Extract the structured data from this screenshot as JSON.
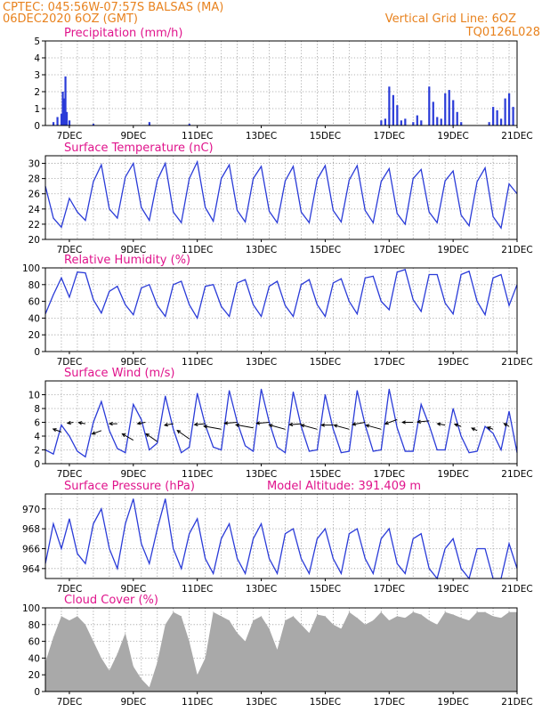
{
  "header": {
    "line1": "CPTEC:   045:56W-07:57S   BALSAS (MA)",
    "line2": "06DEC2020 6OZ (GMT)",
    "grid_note": "Vertical Grid Line: 6OZ",
    "code": "TQ0126L028"
  },
  "colors": {
    "header": "#e8821e",
    "title": "#e0148c",
    "line": "#2a3bd8",
    "bars": "#2a3bd8",
    "cloud": "#a9a9a9",
    "arrow": "#000000"
  },
  "x_axis": {
    "start": "2020-12-06 06Z",
    "end": "2020-12-21 00Z",
    "tick_labels": [
      "7DEC",
      "9DEC",
      "11DEC",
      "13DEC",
      "15DEC",
      "17DEC",
      "19DEC",
      "21DEC"
    ]
  },
  "chart_data": [
    {
      "type": "bar",
      "title": "Precipitation (mm/h)",
      "ylim": [
        0,
        5
      ],
      "yticks": [
        0,
        1,
        2,
        3,
        4,
        5
      ],
      "grid": true,
      "x": [
        "2020-12-06 12Z",
        "2020-12-06 15Z",
        "2020-12-06 18Z",
        "2020-12-06 19Z",
        "2020-12-06 20Z",
        "2020-12-06 21Z",
        "2020-12-06 22Z",
        "2020-12-07 00Z",
        "2020-12-07 18Z",
        "2020-12-09 12Z",
        "2020-12-10 18Z",
        "2020-12-16 18Z",
        "2020-12-16 21Z",
        "2020-12-17 00Z",
        "2020-12-17 03Z",
        "2020-12-17 06Z",
        "2020-12-17 09Z",
        "2020-12-17 12Z",
        "2020-12-17 18Z",
        "2020-12-17 21Z",
        "2020-12-18 00Z",
        "2020-12-18 06Z",
        "2020-12-18 09Z",
        "2020-12-18 12Z",
        "2020-12-18 15Z",
        "2020-12-18 18Z",
        "2020-12-18 21Z",
        "2020-12-19 00Z",
        "2020-12-19 03Z",
        "2020-12-19 06Z",
        "2020-12-20 03Z",
        "2020-12-20 06Z",
        "2020-12-20 09Z",
        "2020-12-20 12Z",
        "2020-12-20 15Z",
        "2020-12-20 18Z",
        "2020-12-20 21Z"
      ],
      "values": [
        0.2,
        0.5,
        0.7,
        2.0,
        1.6,
        2.9,
        0.8,
        0.3,
        0.1,
        0.2,
        0.1,
        0.3,
        0.4,
        2.3,
        1.8,
        1.2,
        0.3,
        0.4,
        0.2,
        0.6,
        0.3,
        2.3,
        1.4,
        0.5,
        0.4,
        1.9,
        2.1,
        1.5,
        0.8,
        0.2,
        0.2,
        1.1,
        0.9,
        0.4,
        1.6,
        1.9,
        1.1
      ]
    },
    {
      "type": "line",
      "title": "Surface Temperature (nC)",
      "ylim": [
        20,
        31
      ],
      "yticks": [
        20,
        22,
        24,
        26,
        28,
        30
      ],
      "grid": true,
      "x": [
        "2020-12-06 06Z",
        "2020-12-06 12Z",
        "2020-12-06 18Z",
        "2020-12-07 00Z",
        "2020-12-07 06Z",
        "2020-12-07 12Z",
        "2020-12-07 18Z",
        "2020-12-08 00Z",
        "2020-12-08 06Z",
        "2020-12-08 12Z",
        "2020-12-08 18Z",
        "2020-12-09 00Z",
        "2020-12-09 06Z",
        "2020-12-09 12Z",
        "2020-12-09 18Z",
        "2020-12-10 00Z",
        "2020-12-10 06Z",
        "2020-12-10 12Z",
        "2020-12-10 18Z",
        "2020-12-11 00Z",
        "2020-12-11 06Z",
        "2020-12-11 12Z",
        "2020-12-11 18Z",
        "2020-12-12 00Z",
        "2020-12-12 06Z",
        "2020-12-12 12Z",
        "2020-12-12 18Z",
        "2020-12-13 00Z",
        "2020-12-13 06Z",
        "2020-12-13 12Z",
        "2020-12-13 18Z",
        "2020-12-14 00Z",
        "2020-12-14 06Z",
        "2020-12-14 12Z",
        "2020-12-14 18Z",
        "2020-12-15 00Z",
        "2020-12-15 06Z",
        "2020-12-15 12Z",
        "2020-12-15 18Z",
        "2020-12-16 00Z",
        "2020-12-16 06Z",
        "2020-12-16 12Z",
        "2020-12-16 18Z",
        "2020-12-17 00Z",
        "2020-12-17 06Z",
        "2020-12-17 12Z",
        "2020-12-17 18Z",
        "2020-12-18 00Z",
        "2020-12-18 06Z",
        "2020-12-18 12Z",
        "2020-12-18 18Z",
        "2020-12-19 00Z",
        "2020-12-19 06Z",
        "2020-12-19 12Z",
        "2020-12-19 18Z",
        "2020-12-20 00Z",
        "2020-12-20 06Z",
        "2020-12-20 12Z",
        "2020-12-20 18Z",
        "2020-12-21 00Z"
      ],
      "values": [
        27.0,
        22.8,
        21.6,
        25.4,
        23.6,
        22.5,
        27.6,
        29.8,
        24.0,
        22.8,
        28.2,
        30.0,
        24.2,
        22.5,
        27.8,
        30.0,
        23.6,
        22.2,
        28.0,
        30.2,
        24.2,
        22.4,
        28.0,
        29.8,
        23.8,
        22.3,
        28.0,
        29.6,
        23.7,
        22.2,
        27.7,
        29.6,
        23.6,
        22.2,
        27.9,
        29.7,
        23.8,
        22.3,
        27.8,
        29.7,
        23.8,
        22.2,
        27.6,
        29.3,
        23.4,
        22.0,
        28.0,
        29.2,
        23.6,
        22.2,
        27.7,
        29.0,
        23.2,
        21.8,
        27.6,
        29.4,
        23.0,
        21.5,
        27.3,
        26.0
      ]
    },
    {
      "type": "line",
      "title": "Relative Humidity (%)",
      "ylim": [
        0,
        100
      ],
      "yticks": [
        0,
        20,
        40,
        60,
        80,
        100
      ],
      "grid": true,
      "x": [
        "2020-12-06 06Z",
        "2020-12-06 12Z",
        "2020-12-06 18Z",
        "2020-12-07 00Z",
        "2020-12-07 06Z",
        "2020-12-07 12Z",
        "2020-12-07 18Z",
        "2020-12-08 00Z",
        "2020-12-08 06Z",
        "2020-12-08 12Z",
        "2020-12-08 18Z",
        "2020-12-09 00Z",
        "2020-12-09 06Z",
        "2020-12-09 12Z",
        "2020-12-09 18Z",
        "2020-12-10 00Z",
        "2020-12-10 06Z",
        "2020-12-10 12Z",
        "2020-12-10 18Z",
        "2020-12-11 00Z",
        "2020-12-11 06Z",
        "2020-12-11 12Z",
        "2020-12-11 18Z",
        "2020-12-12 00Z",
        "2020-12-12 06Z",
        "2020-12-12 12Z",
        "2020-12-12 18Z",
        "2020-12-13 00Z",
        "2020-12-13 06Z",
        "2020-12-13 12Z",
        "2020-12-13 18Z",
        "2020-12-14 00Z",
        "2020-12-14 06Z",
        "2020-12-14 12Z",
        "2020-12-14 18Z",
        "2020-12-15 00Z",
        "2020-12-15 06Z",
        "2020-12-15 12Z",
        "2020-12-15 18Z",
        "2020-12-16 00Z",
        "2020-12-16 06Z",
        "2020-12-16 12Z",
        "2020-12-16 18Z",
        "2020-12-17 00Z",
        "2020-12-17 06Z",
        "2020-12-17 12Z",
        "2020-12-17 18Z",
        "2020-12-18 00Z",
        "2020-12-18 06Z",
        "2020-12-18 12Z",
        "2020-12-18 18Z",
        "2020-12-19 00Z",
        "2020-12-19 06Z",
        "2020-12-19 12Z",
        "2020-12-19 18Z",
        "2020-12-20 00Z",
        "2020-12-20 06Z",
        "2020-12-20 12Z",
        "2020-12-20 18Z",
        "2020-12-21 00Z"
      ],
      "values": [
        45,
        68,
        88,
        65,
        95,
        94,
        62,
        46,
        72,
        78,
        56,
        44,
        76,
        80,
        55,
        42,
        80,
        84,
        56,
        40,
        78,
        80,
        54,
        42,
        82,
        86,
        56,
        42,
        78,
        84,
        55,
        42,
        80,
        86,
        56,
        42,
        82,
        87,
        60,
        45,
        88,
        90,
        60,
        50,
        95,
        98,
        62,
        48,
        92,
        92,
        58,
        45,
        92,
        96,
        60,
        44,
        88,
        92,
        55,
        80
      ]
    },
    {
      "type": "line",
      "title": "Surface Wind (m/s)",
      "ylim": [
        0,
        12
      ],
      "yticks": [
        0,
        2,
        4,
        6,
        8,
        10
      ],
      "grid": true,
      "x": [
        "2020-12-06 06Z",
        "2020-12-06 12Z",
        "2020-12-06 18Z",
        "2020-12-07 00Z",
        "2020-12-07 06Z",
        "2020-12-07 12Z",
        "2020-12-07 18Z",
        "2020-12-08 00Z",
        "2020-12-08 06Z",
        "2020-12-08 12Z",
        "2020-12-08 18Z",
        "2020-12-09 00Z",
        "2020-12-09 06Z",
        "2020-12-09 12Z",
        "2020-12-09 18Z",
        "2020-12-10 00Z",
        "2020-12-10 06Z",
        "2020-12-10 12Z",
        "2020-12-10 18Z",
        "2020-12-11 00Z",
        "2020-12-11 06Z",
        "2020-12-11 12Z",
        "2020-12-11 18Z",
        "2020-12-12 00Z",
        "2020-12-12 06Z",
        "2020-12-12 12Z",
        "2020-12-12 18Z",
        "2020-12-13 00Z",
        "2020-12-13 06Z",
        "2020-12-13 12Z",
        "2020-12-13 18Z",
        "2020-12-14 00Z",
        "2020-12-14 06Z",
        "2020-12-14 12Z",
        "2020-12-14 18Z",
        "2020-12-15 00Z",
        "2020-12-15 06Z",
        "2020-12-15 12Z",
        "2020-12-15 18Z",
        "2020-12-16 00Z",
        "2020-12-16 06Z",
        "2020-12-16 12Z",
        "2020-12-16 18Z",
        "2020-12-17 00Z",
        "2020-12-17 06Z",
        "2020-12-17 12Z",
        "2020-12-17 18Z",
        "2020-12-18 00Z",
        "2020-12-18 06Z",
        "2020-12-18 12Z",
        "2020-12-18 18Z",
        "2020-12-19 00Z",
        "2020-12-19 06Z",
        "2020-12-19 12Z",
        "2020-12-19 18Z",
        "2020-12-20 00Z",
        "2020-12-20 06Z",
        "2020-12-20 12Z",
        "2020-12-20 18Z",
        "2020-12-21 00Z"
      ],
      "values": [
        2.0,
        1.4,
        5.6,
        4.0,
        1.8,
        1.0,
        6.0,
        9.0,
        4.8,
        2.2,
        1.6,
        8.6,
        6.4,
        2.0,
        3.0,
        9.8,
        5.0,
        1.6,
        2.4,
        10.2,
        5.6,
        2.4,
        2.0,
        10.6,
        6.0,
        2.6,
        1.8,
        10.8,
        6.0,
        2.4,
        1.6,
        10.4,
        5.4,
        1.8,
        2.0,
        10.0,
        5.0,
        1.6,
        1.8,
        10.6,
        5.6,
        1.8,
        2.0,
        10.8,
        5.2,
        1.8,
        1.8,
        8.6,
        5.6,
        2.0,
        2.0,
        8.0,
        4.0,
        1.6,
        1.8,
        5.4,
        4.4,
        2.0,
        7.6,
        1.6
      ],
      "arrows": {
        "x": [
          "2020-12-06 18Z",
          "2020-12-07 03Z",
          "2020-12-07 12Z",
          "2020-12-08 00Z",
          "2020-12-08 12Z",
          "2020-12-09 00Z",
          "2020-12-09 09Z",
          "2020-12-09 18Z",
          "2020-12-10 06Z",
          "2020-12-10 18Z",
          "2020-12-11 06Z",
          "2020-12-11 18Z",
          "2020-12-12 06Z",
          "2020-12-12 18Z",
          "2020-12-13 06Z",
          "2020-12-13 18Z",
          "2020-12-14 06Z",
          "2020-12-14 18Z",
          "2020-12-15 06Z",
          "2020-12-15 18Z",
          "2020-12-16 06Z",
          "2020-12-16 18Z",
          "2020-12-17 06Z",
          "2020-12-17 18Z",
          "2020-12-18 06Z",
          "2020-12-18 18Z",
          "2020-12-19 06Z",
          "2020-12-19 18Z",
          "2020-12-20 06Z",
          "2020-12-20 18Z"
        ],
        "y": [
          4.6,
          6.0,
          5.8,
          4.8,
          5.8,
          3.4,
          6.0,
          3.2,
          5.8,
          3.6,
          5.8,
          5.0,
          6.0,
          5.2,
          6.0,
          5.0,
          5.8,
          5.0,
          5.6,
          5.0,
          6.0,
          5.0,
          6.4,
          6.0,
          6.2,
          5.6,
          5.4,
          4.8,
          5.0,
          5.4
        ],
        "dir_deg": [
          200,
          170,
          190,
          160,
          180,
          210,
          170,
          215,
          170,
          215,
          175,
          190,
          175,
          190,
          175,
          195,
          175,
          195,
          180,
          195,
          170,
          195,
          160,
          180,
          175,
          190,
          200,
          205,
          200,
          210
        ],
        "length": [
          4.5,
          3.0,
          3.5,
          5.0,
          4.0,
          6.5,
          4.0,
          7.0,
          4.5,
          7.5,
          5.5,
          9.0,
          6.5,
          9.0,
          6.5,
          8.5,
          6.0,
          8.5,
          6.0,
          8.0,
          6.5,
          8.0,
          6.5,
          5.5,
          6.0,
          4.0,
          3.5,
          3.0,
          3.0,
          3.0
        ]
      }
    },
    {
      "type": "line",
      "title": "Surface Pressure (hPa)",
      "annotation": "Model Altitude: 391.409 m",
      "ylim": [
        963,
        971.5
      ],
      "yticks": [
        964,
        966,
        968,
        970
      ],
      "grid": true,
      "x": [
        "2020-12-06 06Z",
        "2020-12-06 12Z",
        "2020-12-06 18Z",
        "2020-12-07 00Z",
        "2020-12-07 06Z",
        "2020-12-07 12Z",
        "2020-12-07 18Z",
        "2020-12-08 00Z",
        "2020-12-08 06Z",
        "2020-12-08 12Z",
        "2020-12-08 18Z",
        "2020-12-09 00Z",
        "2020-12-09 06Z",
        "2020-12-09 12Z",
        "2020-12-09 18Z",
        "2020-12-10 00Z",
        "2020-12-10 06Z",
        "2020-12-10 12Z",
        "2020-12-10 18Z",
        "2020-12-11 00Z",
        "2020-12-11 06Z",
        "2020-12-11 12Z",
        "2020-12-11 18Z",
        "2020-12-12 00Z",
        "2020-12-12 06Z",
        "2020-12-12 12Z",
        "2020-12-12 18Z",
        "2020-12-13 00Z",
        "2020-12-13 06Z",
        "2020-12-13 12Z",
        "2020-12-13 18Z",
        "2020-12-14 00Z",
        "2020-12-14 06Z",
        "2020-12-14 12Z",
        "2020-12-14 18Z",
        "2020-12-15 00Z",
        "2020-12-15 06Z",
        "2020-12-15 12Z",
        "2020-12-15 18Z",
        "2020-12-16 00Z",
        "2020-12-16 06Z",
        "2020-12-16 12Z",
        "2020-12-16 18Z",
        "2020-12-17 00Z",
        "2020-12-17 06Z",
        "2020-12-17 12Z",
        "2020-12-17 18Z",
        "2020-12-18 00Z",
        "2020-12-18 06Z",
        "2020-12-18 12Z",
        "2020-12-18 18Z",
        "2020-12-19 00Z",
        "2020-12-19 06Z",
        "2020-12-19 12Z",
        "2020-12-19 18Z",
        "2020-12-20 00Z",
        "2020-12-20 06Z",
        "2020-12-20 12Z",
        "2020-12-20 18Z",
        "2020-12-21 00Z"
      ],
      "values": [
        964.5,
        968.5,
        966.0,
        969.0,
        965.5,
        964.5,
        968.5,
        970.0,
        966.0,
        964.0,
        968.5,
        971.0,
        966.5,
        964.5,
        968.0,
        971.0,
        966.0,
        964.0,
        967.5,
        969.0,
        965.0,
        963.5,
        967.0,
        968.5,
        965.0,
        963.5,
        967.0,
        968.5,
        965.0,
        963.5,
        967.5,
        968.0,
        965.0,
        963.5,
        967.0,
        968.0,
        965.0,
        963.5,
        967.5,
        968.0,
        965.0,
        963.5,
        967.0,
        968.0,
        964.5,
        963.5,
        967.0,
        967.5,
        964.0,
        963.0,
        966.0,
        967.0,
        964.0,
        963.0,
        966.0,
        966.0,
        963.0,
        963.0,
        966.5,
        964.0
      ]
    },
    {
      "type": "area",
      "title": "Cloud Cover (%)",
      "ylim": [
        0,
        100
      ],
      "yticks": [
        0,
        20,
        40,
        60,
        80,
        100
      ],
      "grid": true,
      "x": [
        "2020-12-06 06Z",
        "2020-12-06 12Z",
        "2020-12-06 18Z",
        "2020-12-07 00Z",
        "2020-12-07 06Z",
        "2020-12-07 12Z",
        "2020-12-07 18Z",
        "2020-12-08 00Z",
        "2020-12-08 06Z",
        "2020-12-08 12Z",
        "2020-12-08 18Z",
        "2020-12-09 00Z",
        "2020-12-09 06Z",
        "2020-12-09 12Z",
        "2020-12-09 18Z",
        "2020-12-10 00Z",
        "2020-12-10 06Z",
        "2020-12-10 12Z",
        "2020-12-10 18Z",
        "2020-12-11 00Z",
        "2020-12-11 06Z",
        "2020-12-11 12Z",
        "2020-12-11 18Z",
        "2020-12-12 00Z",
        "2020-12-12 06Z",
        "2020-12-12 12Z",
        "2020-12-12 18Z",
        "2020-12-13 00Z",
        "2020-12-13 06Z",
        "2020-12-13 12Z",
        "2020-12-13 18Z",
        "2020-12-14 00Z",
        "2020-12-14 06Z",
        "2020-12-14 12Z",
        "2020-12-14 18Z",
        "2020-12-15 00Z",
        "2020-12-15 06Z",
        "2020-12-15 12Z",
        "2020-12-15 18Z",
        "2020-12-16 00Z",
        "2020-12-16 06Z",
        "2020-12-16 12Z",
        "2020-12-16 18Z",
        "2020-12-17 00Z",
        "2020-12-17 06Z",
        "2020-12-17 12Z",
        "2020-12-17 18Z",
        "2020-12-18 00Z",
        "2020-12-18 06Z",
        "2020-12-18 12Z",
        "2020-12-18 18Z",
        "2020-12-19 00Z",
        "2020-12-19 06Z",
        "2020-12-19 12Z",
        "2020-12-19 18Z",
        "2020-12-20 00Z",
        "2020-12-20 06Z",
        "2020-12-20 12Z",
        "2020-12-20 18Z",
        "2020-12-21 00Z"
      ],
      "values": [
        35,
        65,
        90,
        85,
        90,
        80,
        60,
        40,
        25,
        45,
        70,
        30,
        15,
        5,
        35,
        80,
        95,
        90,
        60,
        20,
        40,
        95,
        90,
        85,
        70,
        60,
        85,
        90,
        75,
        50,
        85,
        90,
        80,
        70,
        92,
        90,
        80,
        75,
        95,
        88,
        80,
        85,
        95,
        85,
        90,
        88,
        95,
        92,
        85,
        80,
        95,
        92,
        88,
        85,
        95,
        95,
        90,
        88,
        95,
        95
      ]
    }
  ]
}
